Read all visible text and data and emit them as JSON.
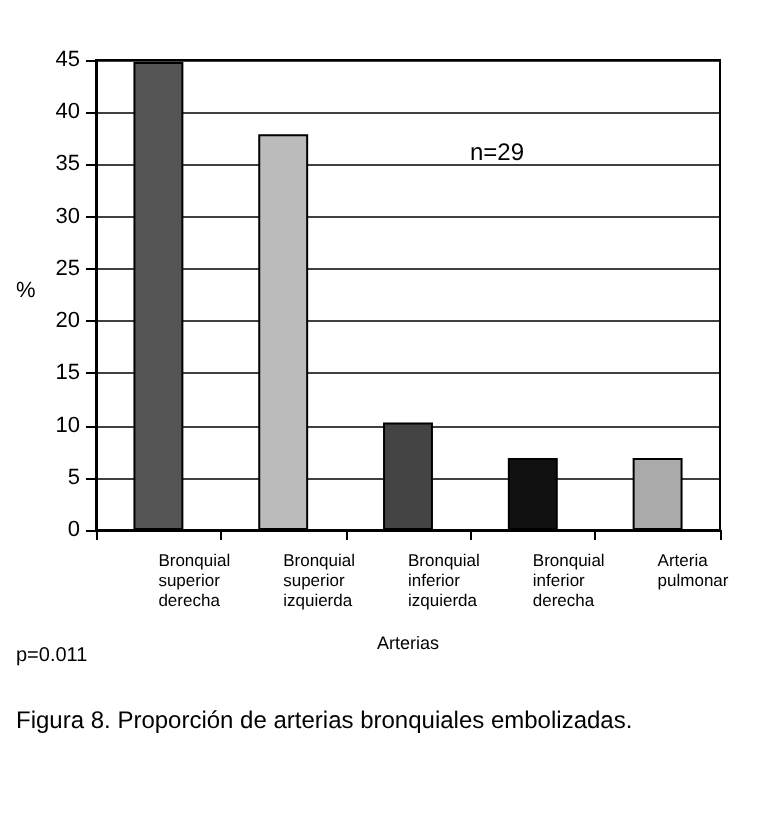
{
  "chart_data": {
    "type": "bar",
    "xlabel": "Arterias",
    "ylabel": "%",
    "categories": [
      "Bronquial\nsuperior\nderecha",
      "Bronquial\nsuperior\nizquierda",
      "Bronquial\ninferior\nizquierda",
      "Bronquial\ninferior\nderecha",
      "Arteria\npulmonar"
    ],
    "values": [
      44.8,
      37.9,
      10.3,
      6.9,
      6.9
    ],
    "colors": [
      "#555555",
      "#bbbbbb",
      "#444444",
      "#111111",
      "#aaaaaa"
    ],
    "ylim": [
      0,
      45
    ],
    "yticks": [
      0,
      5,
      10,
      15,
      20,
      25,
      30,
      35,
      40,
      45
    ],
    "grid": "y",
    "annotations": [
      "n=29",
      "p=0.011",
      "Figura 8. Proporción de arterias bronquiales embolizadas."
    ]
  }
}
